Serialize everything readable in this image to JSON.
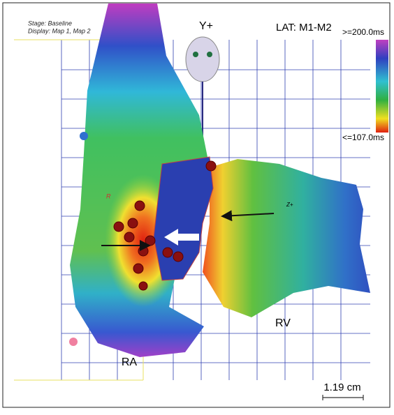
{
  "header": {
    "stage": "Stage: Baseline",
    "display": "Display: Map 1, Map 2"
  },
  "orientation": {
    "y_axis": "Y+",
    "z_axis": "Z+",
    "r_marker": "R"
  },
  "legend": {
    "title": "LAT: M1-M2",
    "max_label": ">=200.0ms",
    "min_label": "<=107.0ms"
  },
  "labels": {
    "right_atrium": "RA",
    "right_ventricle": "RV"
  },
  "scale_bar": {
    "label": "1.19 cm"
  }
}
